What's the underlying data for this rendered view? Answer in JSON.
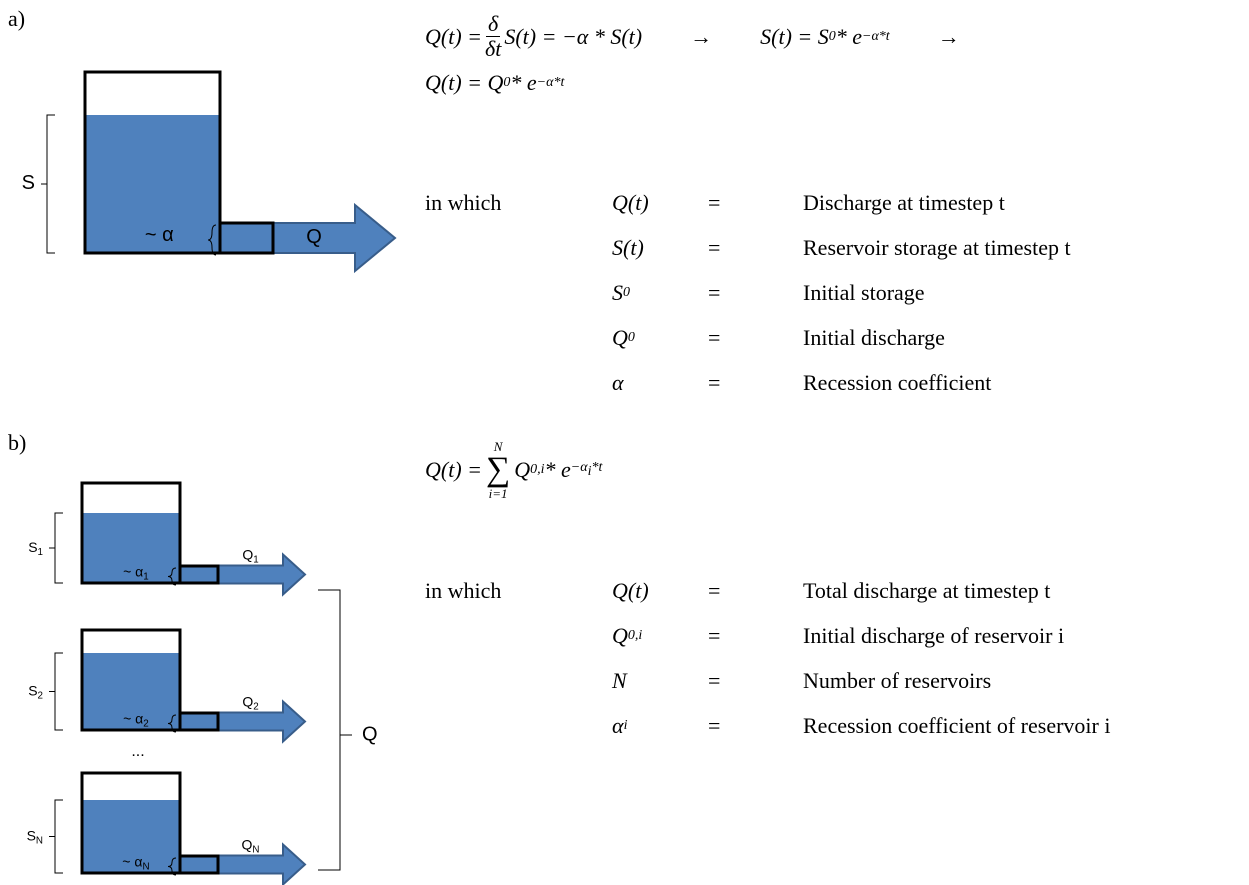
{
  "panels": [
    {
      "label": "a)",
      "diagram": {
        "reservoirs": [
          {
            "storage": {
              "base": "S"
            },
            "coefficient": {
              "base": "~ α"
            },
            "outflow": {
              "base": "Q"
            }
          }
        ]
      },
      "equations": [
        [
          {
            "text": "Q(t) = "
          },
          {
            "frac": {
              "num": "δ",
              "den": "δt"
            }
          },
          {
            "text": "S(t) = −α * S(t)"
          },
          {
            "arrow": "→"
          },
          {
            "text": "S(t) = S"
          },
          {
            "sub": "0"
          },
          {
            "text": " * e"
          },
          {
            "sup": [
              {
                "text": "−α*t"
              }
            ]
          },
          {
            "arrow": "→"
          }
        ],
        [
          {
            "text": "Q(t) = Q"
          },
          {
            "sub": "0"
          },
          {
            "text": " * e"
          },
          {
            "sup": [
              {
                "text": "−α*t"
              }
            ]
          }
        ]
      ],
      "intro": "in which",
      "definitions": [
        {
          "symbol": [
            {
              "text": "Q(t)"
            }
          ],
          "eq": "=",
          "meaning": "Discharge at timestep t"
        },
        {
          "symbol": [
            {
              "text": "S(t)"
            }
          ],
          "eq": "=",
          "meaning": "Reservoir storage at timestep t"
        },
        {
          "symbol": [
            {
              "text": "S"
            },
            {
              "sub": "0"
            }
          ],
          "eq": "=",
          "meaning": "Initial storage"
        },
        {
          "symbol": [
            {
              "text": "Q"
            },
            {
              "sub": "0"
            }
          ],
          "eq": "=",
          "meaning": "Initial discharge"
        },
        {
          "symbol": [
            {
              "text": "α"
            }
          ],
          "eq": "=",
          "meaning": "Recession coefficient"
        }
      ]
    },
    {
      "label": "b)",
      "diagram": {
        "reservoirs": [
          {
            "storage": {
              "base": "S",
              "sub": "1"
            },
            "coefficient": {
              "base": "~ α",
              "sub": "1"
            },
            "outflow": {
              "base": "Q",
              "sub": "1"
            }
          },
          {
            "storage": {
              "base": "S",
              "sub": "2"
            },
            "coefficient": {
              "base": "~ α",
              "sub": "2"
            },
            "outflow": {
              "base": "Q",
              "sub": "2"
            }
          },
          {
            "storage": {
              "base": "S",
              "sub": "N"
            },
            "coefficient": {
              "base": "~ α",
              "sub": "N"
            },
            "outflow": {
              "base": "Q",
              "sub": "N"
            }
          }
        ],
        "ellipsis": "...",
        "total": "Q"
      },
      "equations": [
        [
          {
            "text": "Q(t) = "
          },
          {
            "sum": {
              "symbol": "∑",
              "over": "N",
              "under": "i=1"
            }
          },
          {
            "text": "Q"
          },
          {
            "sub": "0,i"
          },
          {
            "text": " * e"
          },
          {
            "sup": [
              {
                "text": "−α"
              },
              {
                "sub": "i"
              },
              {
                "text": "*t"
              }
            ]
          }
        ]
      ],
      "intro": "in which",
      "definitions": [
        {
          "symbol": [
            {
              "text": "Q(t)"
            }
          ],
          "eq": "=",
          "meaning": "Total discharge at timestep t"
        },
        {
          "symbol": [
            {
              "text": "Q"
            },
            {
              "sub": "0,i"
            }
          ],
          "eq": "=",
          "meaning": "Initial discharge of reservoir i"
        },
        {
          "symbol": [
            {
              "text": "N"
            }
          ],
          "eq": "=",
          "meaning": "Number of reservoirs"
        },
        {
          "symbol": [
            {
              "text": "α"
            },
            {
              "sub": "i"
            }
          ],
          "eq": "=",
          "meaning": "Recession coefficient of reservoir i"
        }
      ]
    }
  ]
}
